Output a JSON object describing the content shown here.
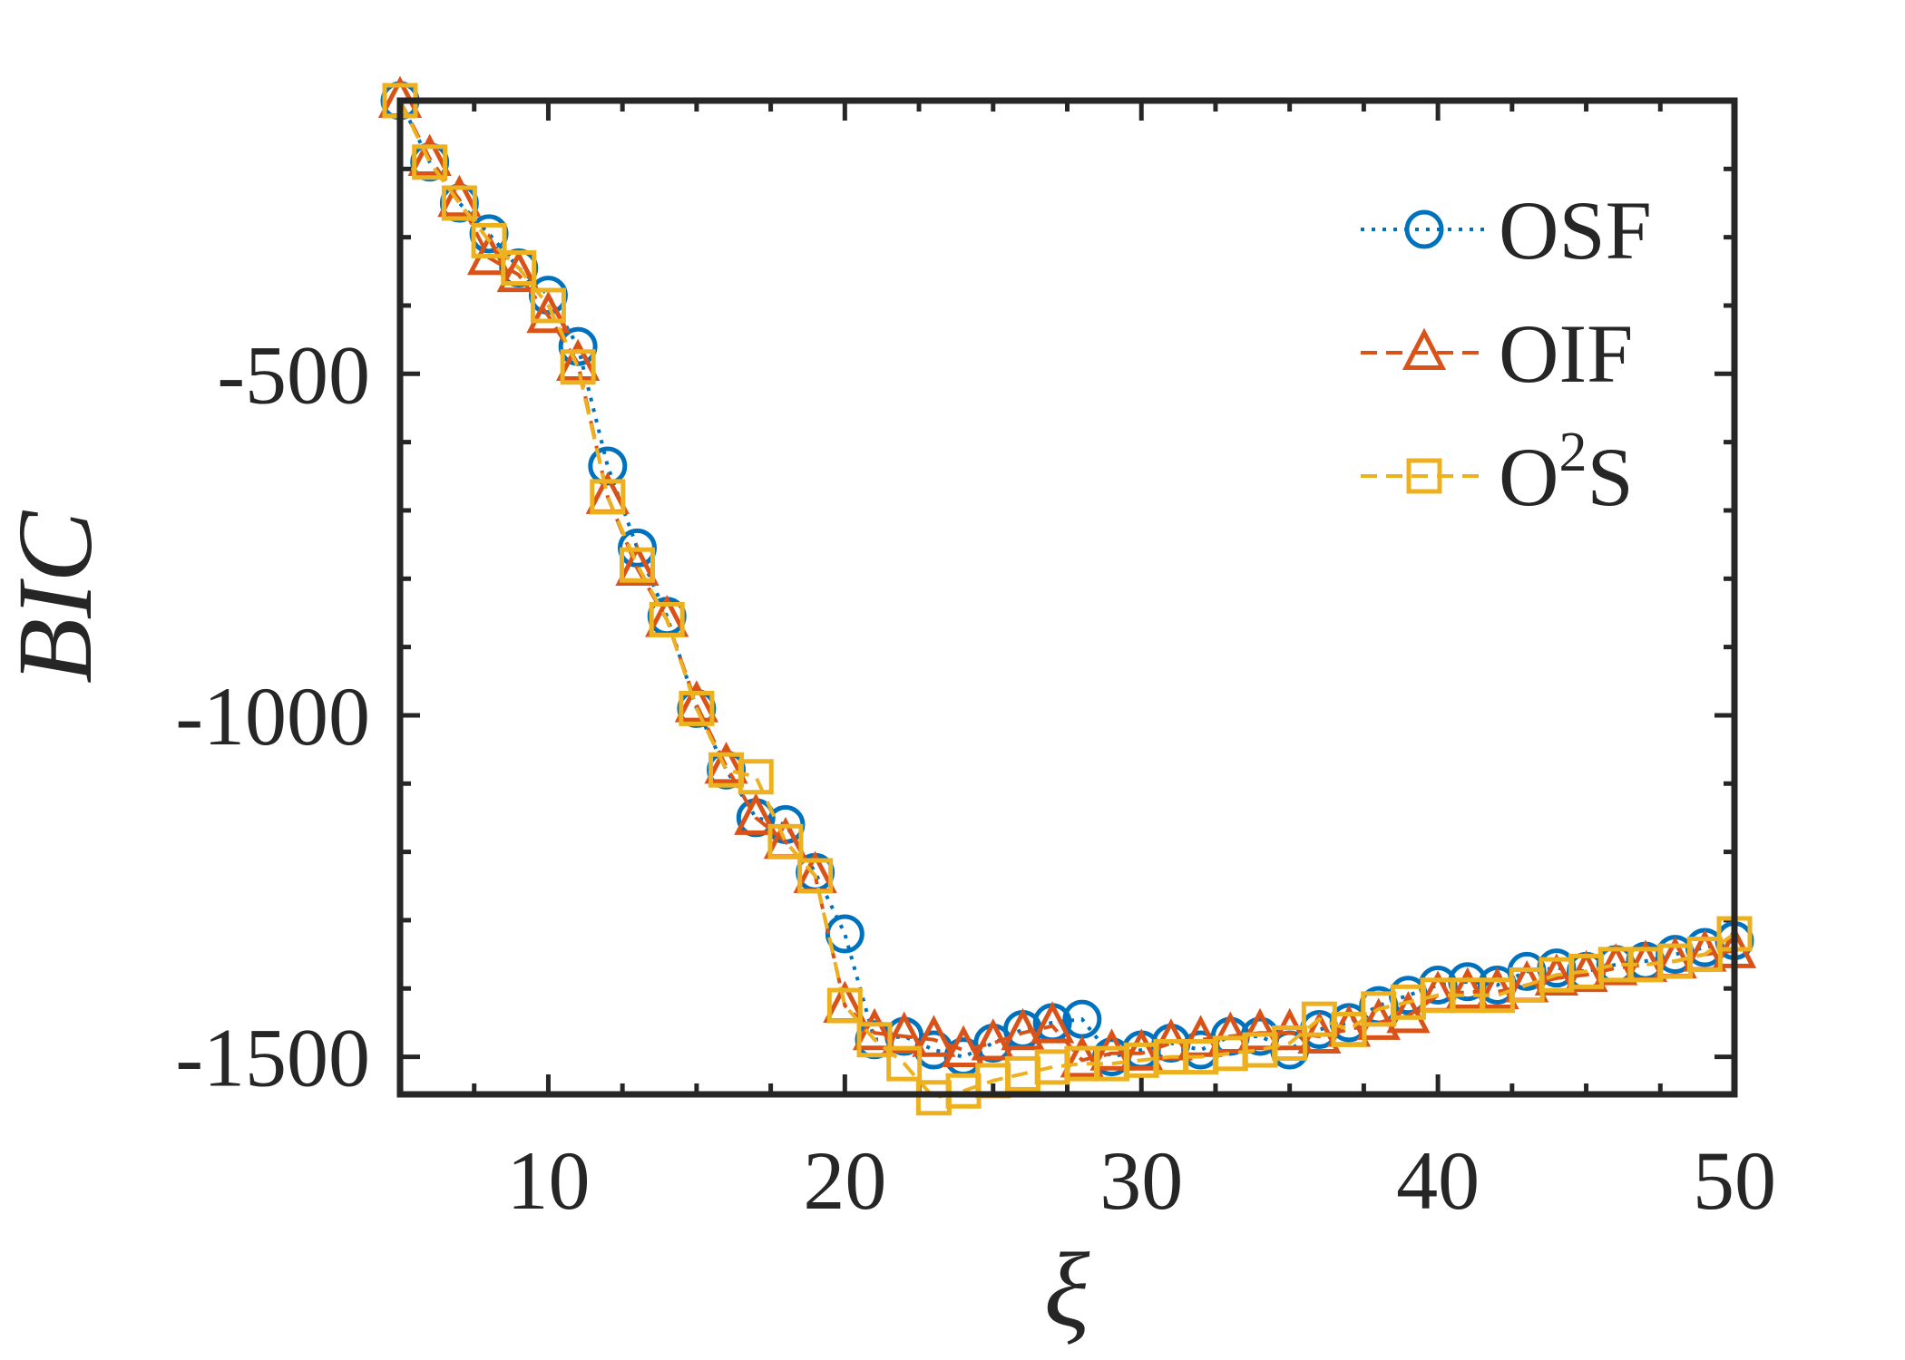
{
  "chart_data": {
    "type": "line",
    "title": "",
    "xlabel": "ξ",
    "ylabel": "BIC",
    "xlim": [
      5,
      50
    ],
    "ylim": [
      -1555,
      -100
    ],
    "xticks": [
      10,
      20,
      30,
      40,
      50
    ],
    "yticks": [
      -1500,
      -1000,
      -500
    ],
    "grid": false,
    "legend_position": "top-right",
    "series": [
      {
        "name": "OSF",
        "legend_label": "OSF",
        "color": "#0072BD",
        "marker": "circle",
        "line_style": "dotted",
        "x": [
          5,
          6,
          7,
          8,
          9,
          10,
          11,
          12,
          13,
          14,
          15,
          16,
          17,
          18,
          19,
          20,
          21,
          22,
          23,
          24,
          25,
          26,
          27,
          28,
          29,
          30,
          31,
          32,
          33,
          34,
          35,
          36,
          37,
          38,
          39,
          40,
          41,
          42,
          43,
          44,
          45,
          46,
          47,
          48,
          49,
          50
        ],
        "y": [
          -100,
          -190,
          -250,
          -295,
          -345,
          -385,
          -460,
          -635,
          -755,
          -855,
          -990,
          -1080,
          -1150,
          -1160,
          -1230,
          -1320,
          -1475,
          -1470,
          -1490,
          -1500,
          -1480,
          -1460,
          -1450,
          -1445,
          -1500,
          -1490,
          -1480,
          -1490,
          -1470,
          -1470,
          -1490,
          -1460,
          -1450,
          -1425,
          -1410,
          -1395,
          -1390,
          -1395,
          -1375,
          -1370,
          -1375,
          -1365,
          -1360,
          -1350,
          -1340,
          -1330
        ]
      },
      {
        "name": "OIF",
        "legend_label": "OIF",
        "color": "#D95319",
        "marker": "triangle",
        "line_style": "dashed",
        "x": [
          5,
          6,
          7,
          8,
          9,
          10,
          11,
          12,
          13,
          14,
          15,
          16,
          17,
          18,
          19,
          20,
          21,
          22,
          23,
          24,
          25,
          26,
          27,
          28,
          29,
          30,
          31,
          32,
          33,
          34,
          35,
          36,
          37,
          38,
          39,
          40,
          41,
          42,
          43,
          44,
          45,
          46,
          47,
          48,
          49,
          50
        ],
        "y": [
          -100,
          -185,
          -245,
          -330,
          -355,
          -415,
          -485,
          -680,
          -785,
          -860,
          -985,
          -1075,
          -1150,
          -1185,
          -1235,
          -1425,
          -1465,
          -1470,
          -1475,
          -1490,
          -1480,
          -1465,
          -1455,
          -1505,
          -1495,
          -1495,
          -1480,
          -1475,
          -1470,
          -1465,
          -1465,
          -1470,
          -1460,
          -1450,
          -1440,
          -1410,
          -1405,
          -1405,
          -1395,
          -1385,
          -1380,
          -1370,
          -1365,
          -1360,
          -1350,
          -1345
        ]
      },
      {
        "name": "O2S",
        "legend_label": "O",
        "legend_sup": "2",
        "legend_suffix": "S",
        "color": "#EDB120",
        "marker": "square",
        "line_style": "dashed",
        "x": [
          5,
          6,
          7,
          8,
          9,
          10,
          11,
          12,
          13,
          14,
          15,
          16,
          17,
          18,
          19,
          20,
          21,
          22,
          23,
          24,
          25,
          26,
          27,
          28,
          29,
          30,
          31,
          32,
          33,
          34,
          35,
          36,
          37,
          38,
          39,
          40,
          41,
          42,
          43,
          44,
          45,
          46,
          47,
          48,
          49,
          50
        ],
        "y": [
          -100,
          -190,
          -250,
          -305,
          -345,
          -400,
          -490,
          -680,
          -780,
          -860,
          -990,
          -1080,
          -1090,
          -1185,
          -1235,
          -1425,
          -1475,
          -1510,
          -1560,
          -1550,
          -1535,
          -1525,
          -1515,
          -1510,
          -1510,
          -1505,
          -1500,
          -1500,
          -1495,
          -1490,
          -1480,
          -1445,
          -1460,
          -1430,
          -1420,
          -1410,
          -1410,
          -1410,
          -1395,
          -1380,
          -1375,
          -1365,
          -1365,
          -1360,
          -1350,
          -1320
        ]
      }
    ]
  }
}
